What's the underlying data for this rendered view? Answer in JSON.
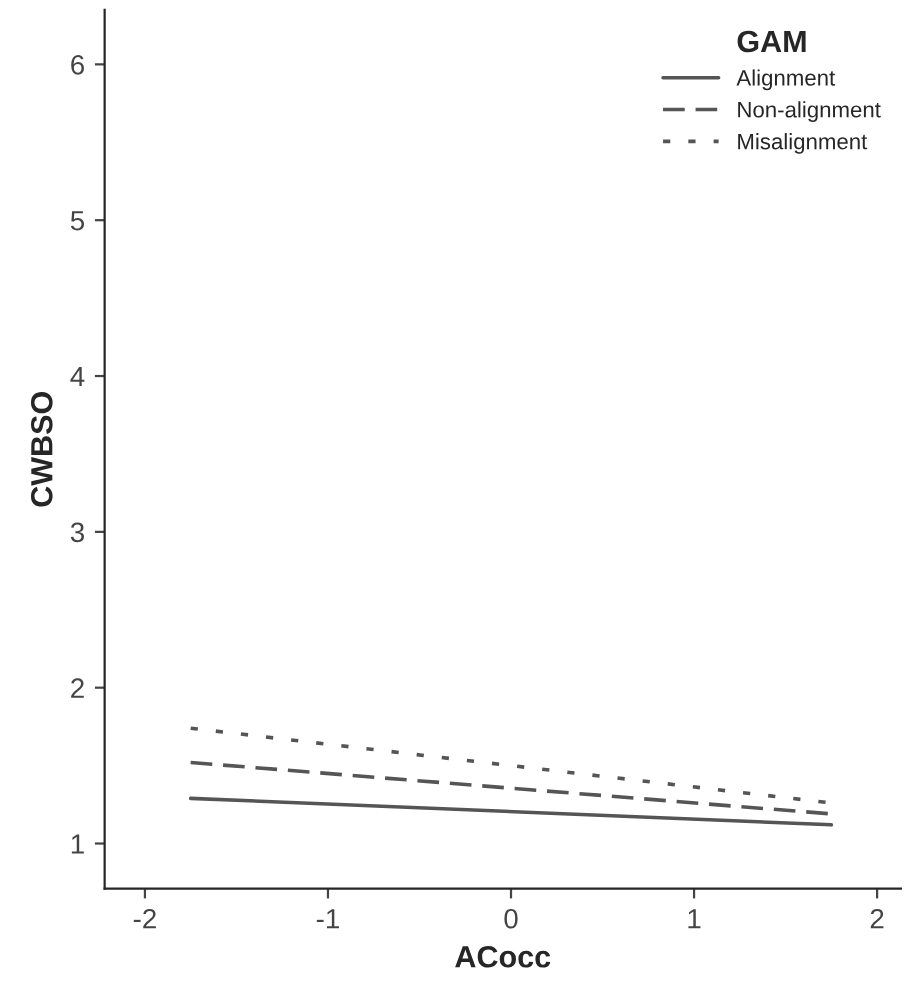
{
  "chart_data": {
    "type": "line",
    "xlabel": "ACocc",
    "ylabel": "CWBSO",
    "legend_title": "GAM",
    "legend": "top right",
    "grid": false,
    "marker": "none",
    "x": [
      -1.75,
      1.75
    ],
    "xlim": [
      -2.22,
      2.13
    ],
    "xticks": [
      -2,
      -1,
      0,
      1,
      2
    ],
    "ylim": [
      0.71,
      6.35
    ],
    "yticks": [
      1,
      2,
      3,
      4,
      5,
      6
    ],
    "series": [
      {
        "name": "Alignment",
        "color": "#555555",
        "values": [
          1.29,
          1.12
        ],
        "line_style": "solid"
      },
      {
        "name": "Non-alignment",
        "color": "#555555",
        "values": [
          1.52,
          1.19
        ],
        "line_style": "dashed"
      },
      {
        "name": "Misalignment",
        "color": "#555555",
        "values": [
          1.74,
          1.26
        ],
        "line_style": "dotted"
      }
    ]
  }
}
